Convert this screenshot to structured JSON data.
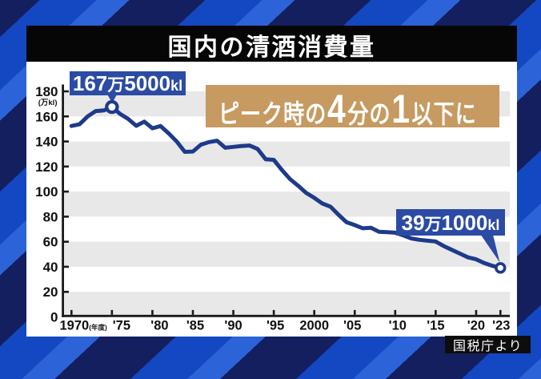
{
  "header": {
    "title": "国内の清酒消費量"
  },
  "footer": {
    "source": "国税庁より"
  },
  "colors": {
    "bg_dark": "#131f5e",
    "bg_mid": "#1447c2",
    "bg_light": "#2d63d9",
    "title_bar": "#060606",
    "card": "#ffffff",
    "band": "#e8e8e8",
    "axis": "#1a1a1a",
    "line": "#1e3a8a",
    "marker_fill": "#ffffff",
    "callout_box": "#2b4ba5",
    "banner_box": "#c69a60",
    "source_box": "#0d0d0d",
    "label_text": "#111111"
  },
  "peak_callout": {
    "value_main": "167",
    "unit_man": "万",
    "value_sub": "5000",
    "unit_kl": "kl"
  },
  "latest_callout": {
    "value_main": "39",
    "unit_man": "万",
    "value_sub": "1000",
    "unit_kl": "kl"
  },
  "banner": {
    "lead": "ピーク時の",
    "big_four": "4",
    "mid": "分の",
    "big_one": "1",
    "tail": "以下に"
  },
  "chart_data": {
    "type": "line",
    "title": "国内の清酒消費量",
    "ylabel": "(万kl)",
    "xlabel": "",
    "x_axis_note": "(年度)",
    "ylim": [
      0,
      180
    ],
    "xlim": [
      1970,
      2023
    ],
    "grid": "alternating horizontal gray bands",
    "legend": "none",
    "x": [
      1970,
      1971,
      1972,
      1973,
      1974,
      1975,
      1976,
      1977,
      1978,
      1979,
      1980,
      1981,
      1982,
      1983,
      1984,
      1985,
      1986,
      1987,
      1988,
      1989,
      1990,
      1991,
      1992,
      1993,
      1994,
      1995,
      1996,
      1997,
      1998,
      1999,
      2000,
      2001,
      2002,
      2003,
      2004,
      2005,
      2006,
      2007,
      2008,
      2009,
      2010,
      2011,
      2012,
      2013,
      2014,
      2015,
      2016,
      2017,
      2018,
      2019,
      2020,
      2021,
      2022,
      2023
    ],
    "values": [
      152.4,
      153.7,
      160,
      164.3,
      164.8,
      167.5,
      162,
      158,
      152.5,
      155.8,
      150.5,
      152.3,
      146.5,
      140,
      131.7,
      132,
      137.5,
      139.5,
      140.6,
      135,
      135.7,
      136.3,
      136.8,
      134,
      125.8,
      125.3,
      117.3,
      110,
      104.7,
      99,
      95,
      90.5,
      88,
      81.5,
      75.5,
      73.3,
      70.7,
      71.2,
      68,
      67.6,
      67.2,
      65,
      62.6,
      61.5,
      60.8,
      60.2,
      56.5,
      53.5,
      50.5,
      47.5,
      46,
      43,
      40.8,
      39.1
    ],
    "y_ticks": [
      0,
      20,
      40,
      60,
      80,
      100,
      120,
      140,
      160,
      180
    ],
    "x_ticks": [
      {
        "year": 1970,
        "label": "1970",
        "suffix": "(年度)",
        "nudge": 0
      },
      {
        "year": 1975,
        "label": "'75",
        "nudge": 12
      },
      {
        "year": 1980,
        "label": "'80",
        "nudge": 9
      },
      {
        "year": 1985,
        "label": "'85",
        "nudge": 3
      },
      {
        "year": 1990,
        "label": "'90",
        "nudge": 0
      },
      {
        "year": 1995,
        "label": "'95",
        "nudge": 2
      },
      {
        "year": 2000,
        "label": "2000",
        "nudge": 0
      },
      {
        "year": 2005,
        "label": "'05",
        "nudge": -3
      },
      {
        "year": 2010,
        "label": "'10",
        "nudge": 3
      },
      {
        "year": 2015,
        "label": "'15",
        "nudge": 0
      },
      {
        "year": 2020,
        "label": "'20",
        "nudge": 0
      },
      {
        "year": 2023,
        "label": "'23",
        "nudge": 1
      }
    ],
    "shaded_bands": [
      [
        180,
        160
      ],
      [
        140,
        120
      ],
      [
        100,
        80
      ],
      [
        60,
        40
      ],
      [
        20,
        0
      ]
    ],
    "annotations": [
      {
        "year": 1975,
        "value": 167.5,
        "label": "167万5000kl"
      },
      {
        "year": 2023,
        "value": 39.1,
        "label": "39万1000kl"
      }
    ],
    "banner_text": "ピーク時の4分の1以下に",
    "source": "国税庁より"
  }
}
